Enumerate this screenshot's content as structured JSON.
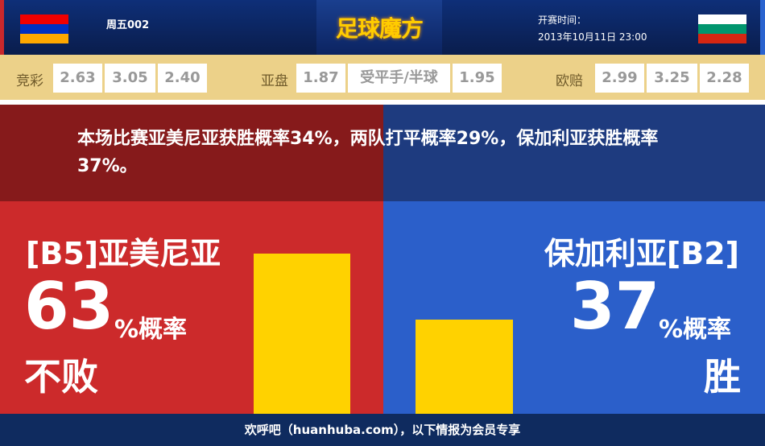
{
  "header": {
    "home_flag": [
      "#f00000",
      "#0030c0",
      "#ffa800"
    ],
    "away_flag": [
      "#ffffff",
      "#00966e",
      "#d62612"
    ],
    "match_code": "周五002",
    "logo": "足球魔方",
    "kickoff_label": "开赛时间：",
    "kickoff_time": "2013年10月11日 23:00"
  },
  "odds": {
    "jingcai_label": "竞彩",
    "jingcai": [
      "2.63",
      "3.05",
      "2.40"
    ],
    "yapan_label": "亚盘",
    "yapan": [
      "1.87",
      "受平手/半球",
      "1.95"
    ],
    "ouzhou_label": "欧赔",
    "ouzhou": [
      "2.99",
      "3.25",
      "2.28"
    ]
  },
  "summary": "本场比赛亚美尼亚获胜概率34%，两队打平概率29%，保加利亚获胜概率37%。",
  "home": {
    "name": "[B5]亚美尼亚",
    "percent": "63",
    "unit": "%概率",
    "outcome": "不败"
  },
  "away": {
    "name": "保加利亚[B2]",
    "percent": "37",
    "unit": "%概率",
    "outcome": "胜"
  },
  "chart_data": {
    "type": "bar",
    "categories": [
      "亚美尼亚 不败",
      "保加利亚 胜"
    ],
    "values": [
      63,
      37
    ],
    "color": "#ffd200"
  },
  "footer": "欢呼吧（huanhuba.com），以下情报为会员专享"
}
